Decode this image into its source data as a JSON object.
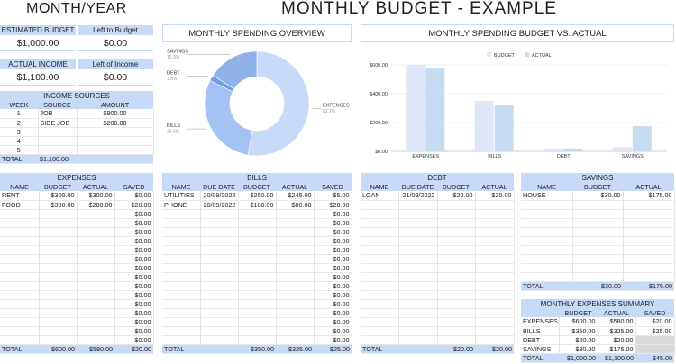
{
  "header": {
    "month_year": "MONTH/YEAR",
    "title": "MONTHLY BUDGET - EXAMPLE"
  },
  "estimated_budget": {
    "label": "ESTIMATED BUDGET",
    "value": "$1,000.00"
  },
  "left_to_budget": {
    "label": "Left to Budget",
    "value": "$0.00"
  },
  "actual_income": {
    "label": "ACTUAL INCOME",
    "value": "$1,100.00"
  },
  "left_of_income": {
    "label": "Left of Income",
    "value": "$0.00"
  },
  "income_sources": {
    "title": "INCOME SOURCES",
    "columns": [
      "WEEK",
      "SOURCE",
      "AMOUNT"
    ],
    "rows": [
      [
        "1",
        "JOB",
        "$900.00"
      ],
      [
        "2",
        "SIDE JOB",
        "$200.00"
      ],
      [
        "3",
        "",
        ""
      ],
      [
        "4",
        "",
        ""
      ],
      [
        "5",
        "",
        ""
      ]
    ],
    "total_label": "TOTAL",
    "total_value": "$1,100.00"
  },
  "donut_chart": {
    "title": "MONTHLY SPENDING OVERVIEW",
    "chart_data": {
      "type": "pie",
      "labels": [
        "EXPENSES",
        "BILLS",
        "DEBT",
        "SAVINGS"
      ],
      "values": [
        52.7,
        29.5,
        1.8,
        15.9
      ],
      "value_labels": [
        "52.7%",
        "29.5%",
        "1.8%",
        "15.9%"
      ],
      "colors": [
        "#c9daf8",
        "#a4c2f4",
        "#6d9eeb",
        "#8fb3e9"
      ]
    }
  },
  "bar_chart": {
    "title": "MONTHLY SPENDING BUDGET VS. ACTUAL",
    "chart_data": {
      "type": "bar",
      "categories": [
        "EXPENSES",
        "BILLS",
        "DEBT",
        "SAVINGS"
      ],
      "series": [
        {
          "name": "BUDGET",
          "values": [
            600,
            350,
            20,
            30
          ],
          "color": "#dde7f7"
        },
        {
          "name": "ACTUAL",
          "values": [
            580,
            325,
            20,
            175
          ],
          "color": "#c7dcf0"
        }
      ],
      "ylim": [
        0,
        600
      ],
      "yticks": [
        "$0.00",
        "$200.00",
        "$400.00",
        "$600.00"
      ],
      "ytick_values": [
        0,
        200,
        400,
        600
      ]
    }
  },
  "expenses": {
    "title": "EXPENSES",
    "columns": [
      "NAME",
      "BUDGET",
      "ACTUAL",
      "SAVED"
    ],
    "rows": [
      [
        "RENT",
        "$300.00",
        "$300.00",
        "$0.00"
      ],
      [
        "FOOD",
        "$300.00",
        "$280.00",
        "$20.00"
      ],
      [
        "",
        "",
        "",
        "$0.00"
      ],
      [
        "",
        "",
        "",
        "$0.00"
      ],
      [
        "",
        "",
        "",
        "$0.00"
      ],
      [
        "",
        "",
        "",
        "$0.00"
      ],
      [
        "",
        "",
        "",
        "$0.00"
      ],
      [
        "",
        "",
        "",
        "$0.00"
      ],
      [
        "",
        "",
        "",
        "$0.00"
      ],
      [
        "",
        "",
        "",
        "$0.00"
      ],
      [
        "",
        "",
        "",
        "$0.00"
      ],
      [
        "",
        "",
        "",
        "$0.00"
      ],
      [
        "",
        "",
        "",
        "$0.00"
      ],
      [
        "",
        "",
        "",
        "$0.00"
      ],
      [
        "",
        "",
        "",
        "$0.00"
      ],
      [
        "",
        "",
        "",
        "$0.00"
      ],
      [
        "",
        "",
        "",
        "$0.00"
      ]
    ],
    "total": [
      "TOTAL",
      "$600.00",
      "$580.00",
      "$20.00"
    ]
  },
  "bills": {
    "title": "BILLS",
    "columns": [
      "NAME",
      "DUE DATE",
      "BUDGET",
      "ACTUAL",
      "SAVED"
    ],
    "rows": [
      [
        "UTILITIES",
        "20/09/2022",
        "$250.00",
        "$245.00",
        "$5.00"
      ],
      [
        "PHONE",
        "20/09/2022",
        "$100.00",
        "$80.00",
        "$20.00"
      ],
      [
        "",
        "",
        "",
        "",
        "$0.00"
      ],
      [
        "",
        "",
        "",
        "",
        "$0.00"
      ],
      [
        "",
        "",
        "",
        "",
        "$0.00"
      ],
      [
        "",
        "",
        "",
        "",
        "$0.00"
      ],
      [
        "",
        "",
        "",
        "",
        "$0.00"
      ],
      [
        "",
        "",
        "",
        "",
        "$0.00"
      ],
      [
        "",
        "",
        "",
        "",
        "$0.00"
      ],
      [
        "",
        "",
        "",
        "",
        "$0.00"
      ],
      [
        "",
        "",
        "",
        "",
        "$0.00"
      ],
      [
        "",
        "",
        "",
        "",
        "$0.00"
      ],
      [
        "",
        "",
        "",
        "",
        "$0.00"
      ],
      [
        "",
        "",
        "",
        "",
        "$0.00"
      ],
      [
        "",
        "",
        "",
        "",
        "$0.00"
      ],
      [
        "",
        "",
        "",
        "",
        "$0.00"
      ],
      [
        "",
        "",
        "",
        "",
        "$0.00"
      ]
    ],
    "total": [
      "TOTAL",
      "",
      "$350.00",
      "$325.00",
      "$25.00"
    ]
  },
  "debt": {
    "title": "DEBT",
    "columns": [
      "NAME",
      "DUE DATE",
      "BUDGET",
      "ACTUAL"
    ],
    "rows": [
      [
        "LOAN",
        "21/09/2022",
        "$20.00",
        "$20.00"
      ]
    ],
    "empty_rows": 16,
    "total": [
      "TOTAL",
      "",
      "$20.00",
      "$20.00"
    ]
  },
  "savings": {
    "title": "SAVINGS",
    "columns": [
      "NAME",
      "BUDGET",
      "ACTUAL"
    ],
    "rows": [
      [
        "HOUSE",
        "$30.00",
        "$175.00"
      ]
    ],
    "empty_rows": 9,
    "total": [
      "TOTAL",
      "$30.00",
      "$175.00"
    ]
  },
  "summary": {
    "title": "MONTHLY EXPENSES SUMMARY",
    "columns": [
      "",
      "BUDGET",
      "ACTUAL",
      "SAVED"
    ],
    "rows": [
      [
        "EXPENSES",
        "$600.00",
        "$580.00",
        "$20.00"
      ],
      [
        "BILLS",
        "$350.00",
        "$325.00",
        "$25.00"
      ],
      [
        "DEBT",
        "$20.00",
        "$20.00",
        ""
      ],
      [
        "SAVINGS",
        "$30.00",
        "$175.00",
        ""
      ]
    ],
    "total": [
      "TOTAL",
      "$1,000.00",
      "$1,100.00",
      "$45.00"
    ]
  }
}
